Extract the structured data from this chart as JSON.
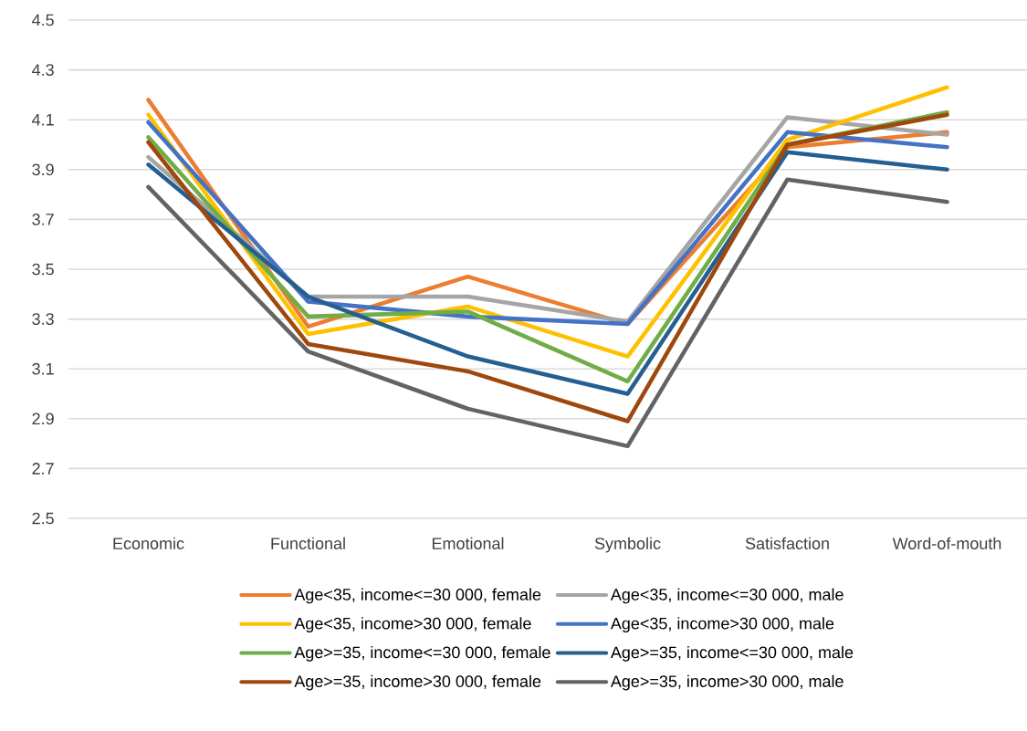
{
  "chart_data": {
    "type": "line",
    "categories": [
      "Economic",
      "Functional",
      "Emotional",
      "Symbolic",
      "Satisfaction",
      "Word-of-mouth"
    ],
    "series": [
      {
        "name": "Age<35, income<=30 000, female",
        "color": "#ed7d31",
        "values": [
          4.18,
          3.27,
          3.47,
          3.28,
          3.99,
          4.05
        ]
      },
      {
        "name": "Age<35, income<=30 000, male",
        "color": "#a5a5a5",
        "values": [
          3.95,
          3.39,
          3.39,
          3.29,
          4.11,
          4.04
        ]
      },
      {
        "name": "Age<35, income>30 000, female",
        "color": "#ffc000",
        "values": [
          4.12,
          3.24,
          3.35,
          3.15,
          4.02,
          4.23
        ]
      },
      {
        "name": "Age<35, income>30 000, male",
        "color": "#4472c4",
        "values": [
          4.09,
          3.37,
          3.31,
          3.28,
          4.05,
          3.99
        ]
      },
      {
        "name": "Age>=35, income<=30 000, female",
        "color": "#70ad47",
        "values": [
          4.03,
          3.31,
          3.33,
          3.05,
          4.0,
          4.13
        ]
      },
      {
        "name": "Age>=35, income<=30 000, male",
        "color": "#255e91",
        "values": [
          3.92,
          3.39,
          3.15,
          3.0,
          3.97,
          3.9
        ]
      },
      {
        "name": "Age>=35, income>30 000, female",
        "color": "#9e480e",
        "values": [
          4.01,
          3.2,
          3.09,
          2.89,
          4.0,
          4.12
        ]
      },
      {
        "name": "Age>=35, income>30 000, male",
        "color": "#636363",
        "values": [
          3.83,
          3.17,
          2.94,
          2.79,
          3.86,
          3.77
        ]
      }
    ],
    "ylim": [
      2.5,
      4.5
    ],
    "yticks": [
      2.5,
      2.7,
      2.9,
      3.1,
      3.3,
      3.5,
      3.7,
      3.9,
      4.1,
      4.3,
      4.5
    ],
    "grid": "y",
    "legend": "bottom"
  }
}
